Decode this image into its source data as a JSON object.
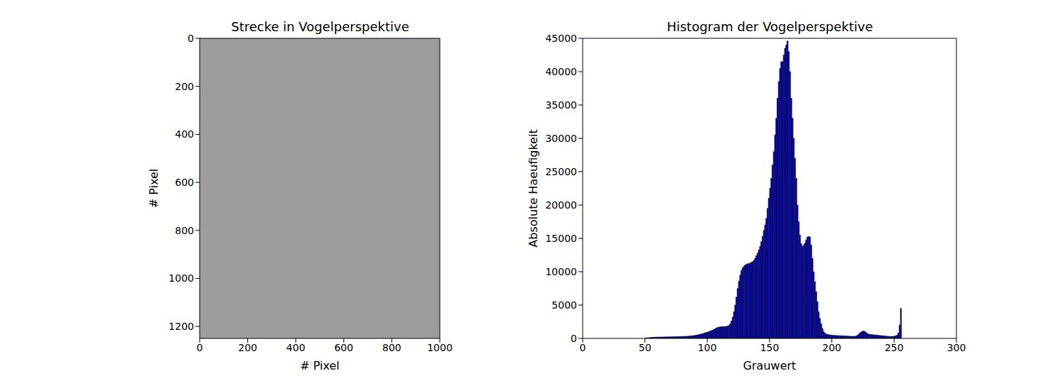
{
  "chart_data": [
    {
      "type": "image",
      "title": "Strecke in Vogelperspektive",
      "x_label": "# Pixel",
      "y_label": "# Pixel",
      "xlim": [
        0,
        1000
      ],
      "xticks": [
        0,
        200,
        400,
        600,
        800,
        1000
      ],
      "ylim": [
        1250,
        0
      ],
      "yticks": [
        0,
        200,
        400,
        600,
        800,
        1000,
        1200
      ]
    },
    {
      "type": "histogram",
      "title": "Histogram der Vogelperspektive",
      "x_label": "Grauwert",
      "y_label": "Absolute Haeufigkeit",
      "color": "#0000ff",
      "xlim": [
        0,
        300
      ],
      "xticks": [
        0,
        50,
        100,
        150,
        200,
        250,
        300
      ],
      "ylim": [
        0,
        45000
      ],
      "yticks": [
        0,
        5000,
        10000,
        15000,
        20000,
        25000,
        30000,
        35000,
        40000,
        45000
      ],
      "bins": [
        50,
        51,
        52,
        53,
        54,
        55,
        56,
        57,
        58,
        59,
        60,
        61,
        62,
        63,
        64,
        65,
        66,
        67,
        68,
        69,
        70,
        71,
        72,
        73,
        74,
        75,
        76,
        77,
        78,
        79,
        80,
        81,
        82,
        83,
        84,
        85,
        86,
        87,
        88,
        89,
        90,
        91,
        92,
        93,
        94,
        95,
        96,
        97,
        98,
        99,
        100,
        101,
        102,
        103,
        104,
        105,
        106,
        107,
        108,
        109,
        110,
        111,
        112,
        113,
        114,
        115,
        116,
        117,
        118,
        119,
        120,
        121,
        122,
        123,
        124,
        125,
        126,
        127,
        128,
        129,
        130,
        131,
        132,
        133,
        134,
        135,
        136,
        137,
        138,
        139,
        140,
        141,
        142,
        143,
        144,
        145,
        146,
        147,
        148,
        149,
        150,
        151,
        152,
        153,
        154,
        155,
        156,
        157,
        158,
        159,
        160,
        161,
        162,
        163,
        164,
        165,
        166,
        167,
        168,
        169,
        170,
        171,
        172,
        173,
        174,
        175,
        176,
        177,
        178,
        179,
        180,
        181,
        182,
        183,
        184,
        185,
        186,
        187,
        188,
        189,
        190,
        191,
        192,
        193,
        194,
        195,
        196,
        197,
        198,
        199,
        200,
        201,
        202,
        203,
        204,
        205,
        206,
        207,
        208,
        209,
        210,
        211,
        212,
        213,
        214,
        215,
        216,
        217,
        218,
        219,
        220,
        221,
        222,
        223,
        224,
        225,
        226,
        227,
        228,
        229,
        230,
        231,
        232,
        233,
        234,
        235,
        236,
        237,
        238,
        239,
        240,
        241,
        242,
        243,
        244,
        245,
        246,
        247,
        248,
        249,
        250,
        251,
        252,
        253,
        254,
        255,
        256
      ],
      "values": [
        60,
        80,
        100,
        120,
        130,
        150,
        160,
        170,
        180,
        190,
        200,
        200,
        210,
        210,
        210,
        220,
        220,
        220,
        230,
        230,
        230,
        240,
        240,
        250,
        250,
        260,
        260,
        270,
        280,
        290,
        300,
        300,
        310,
        320,
        330,
        350,
        370,
        390,
        410,
        430,
        460,
        500,
        540,
        580,
        620,
        670,
        720,
        780,
        840,
        900,
        960,
        1020,
        1100,
        1180,
        1260,
        1350,
        1450,
        1550,
        1650,
        1700,
        1720,
        1740,
        1750,
        1760,
        1780,
        1800,
        1850,
        1950,
        2200,
        2600,
        3200,
        4000,
        5000,
        6200,
        7500,
        8600,
        9500,
        10200,
        10600,
        10800,
        11000,
        11100,
        11200,
        11200,
        11300,
        11400,
        11500,
        11700,
        12000,
        12400,
        12800,
        13300,
        13800,
        14500,
        15300,
        16200,
        17000,
        18000,
        19500,
        21000,
        22500,
        24000,
        26000,
        28000,
        30500,
        33000,
        36000,
        38500,
        40500,
        41500,
        41500,
        42500,
        43500,
        44000,
        44600,
        43000,
        40000,
        36000,
        33000,
        30000,
        27000,
        24000,
        20000,
        17500,
        15500,
        14200,
        13800,
        14000,
        14300,
        14800,
        15200,
        15300,
        15200,
        14000,
        12000,
        10000,
        8500,
        7000,
        5500,
        4000,
        3000,
        2200,
        1500,
        1000,
        800,
        650,
        600,
        550,
        520,
        500,
        480,
        460,
        450,
        440,
        430,
        420,
        410,
        400,
        390,
        380,
        370,
        360,
        350,
        340,
        330,
        320,
        310,
        310,
        320,
        350,
        450,
        600,
        800,
        950,
        1050,
        1100,
        1050,
        900,
        750,
        650,
        600,
        580,
        560,
        540,
        520,
        500,
        480,
        460,
        440,
        420,
        400,
        380,
        360,
        340,
        320,
        300,
        300,
        300,
        300,
        300,
        350,
        400,
        500,
        800,
        2000,
        4500
      ]
    }
  ]
}
